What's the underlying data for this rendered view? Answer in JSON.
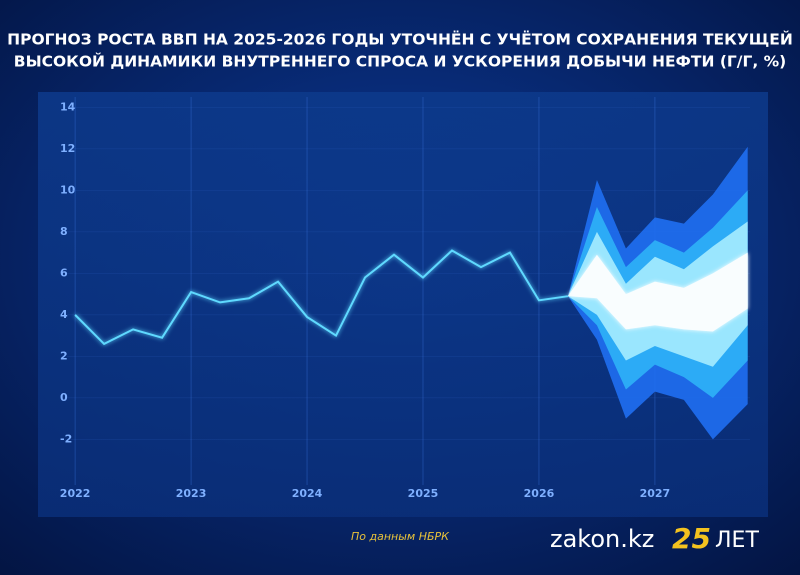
{
  "chart_data": {
    "type": "fan",
    "title_lines": [
      "ПРОГНОЗ РОСТА ВВП НА 2025-2026 ГОДЫ УТОЧНЁН С УЧЁТОМ СОХРАНЕНИЯ ТЕКУЩЕЙ",
      "ВЫСОКОЙ ДИНАМИКИ ВНУТРЕННЕГО СПРОСА И УСКОРЕНИЯ ДОБЫЧИ НЕФТИ (Г/Г, %)"
    ],
    "x": [
      2022,
      2022.25,
      2022.5,
      2022.75,
      2023,
      2023.25,
      2023.5,
      2023.75,
      2024,
      2024.25,
      2024.5,
      2024.75,
      2025,
      2025.25,
      2025.5,
      2025.75,
      2026,
      2026.25
    ],
    "values": [
      4.0,
      2.6,
      3.3,
      2.9,
      5.1,
      4.6,
      4.8,
      5.6,
      3.9,
      3.0,
      5.8,
      6.9,
      5.8,
      7.1,
      6.3,
      7.0,
      4.7,
      4.9
    ],
    "color": "#5fd9ff",
    "fan_x": [
      2026.25,
      2026.5,
      2026.75,
      2027,
      2027.25,
      2027.5,
      2027.8
    ],
    "bands": [
      {
        "color": "#1f6ff2",
        "upper": [
          4.9,
          10.5,
          7.2,
          8.7,
          8.4,
          9.8,
          12.1
        ],
        "lower": [
          4.9,
          2.8,
          -1.0,
          0.3,
          -0.1,
          -2.0,
          -0.3
        ]
      },
      {
        "color": "#2fb2f7",
        "upper": [
          4.9,
          9.2,
          6.3,
          7.6,
          7.0,
          8.2,
          10.0
        ],
        "lower": [
          4.9,
          3.5,
          0.4,
          1.6,
          1.0,
          0.0,
          1.8
        ]
      },
      {
        "color": "#a6ecff",
        "upper": [
          4.9,
          8.0,
          5.5,
          6.8,
          6.2,
          7.3,
          8.5
        ],
        "lower": [
          4.9,
          4.0,
          1.8,
          2.5,
          2.0,
          1.5,
          3.5
        ]
      },
      {
        "color": "#ffffff",
        "upper": [
          4.9,
          6.9,
          5.0,
          5.6,
          5.3,
          6.0,
          7.0
        ],
        "lower": [
          4.9,
          4.8,
          3.3,
          3.5,
          3.3,
          3.2,
          4.3
        ]
      }
    ],
    "xlim": [
      2021.93,
      2027.82
    ],
    "xticks": [
      2022,
      2023,
      2024,
      2025,
      2026,
      2027
    ],
    "ylim": [
      -4.2,
      14.5
    ],
    "yticks": [
      14,
      12,
      10,
      8,
      6,
      4,
      2,
      0,
      -2
    ],
    "grid": true,
    "source": "По данным НБРК",
    "brand": "zakon.kz",
    "badge_number": "25",
    "badge_text": "ЛЕТ"
  }
}
